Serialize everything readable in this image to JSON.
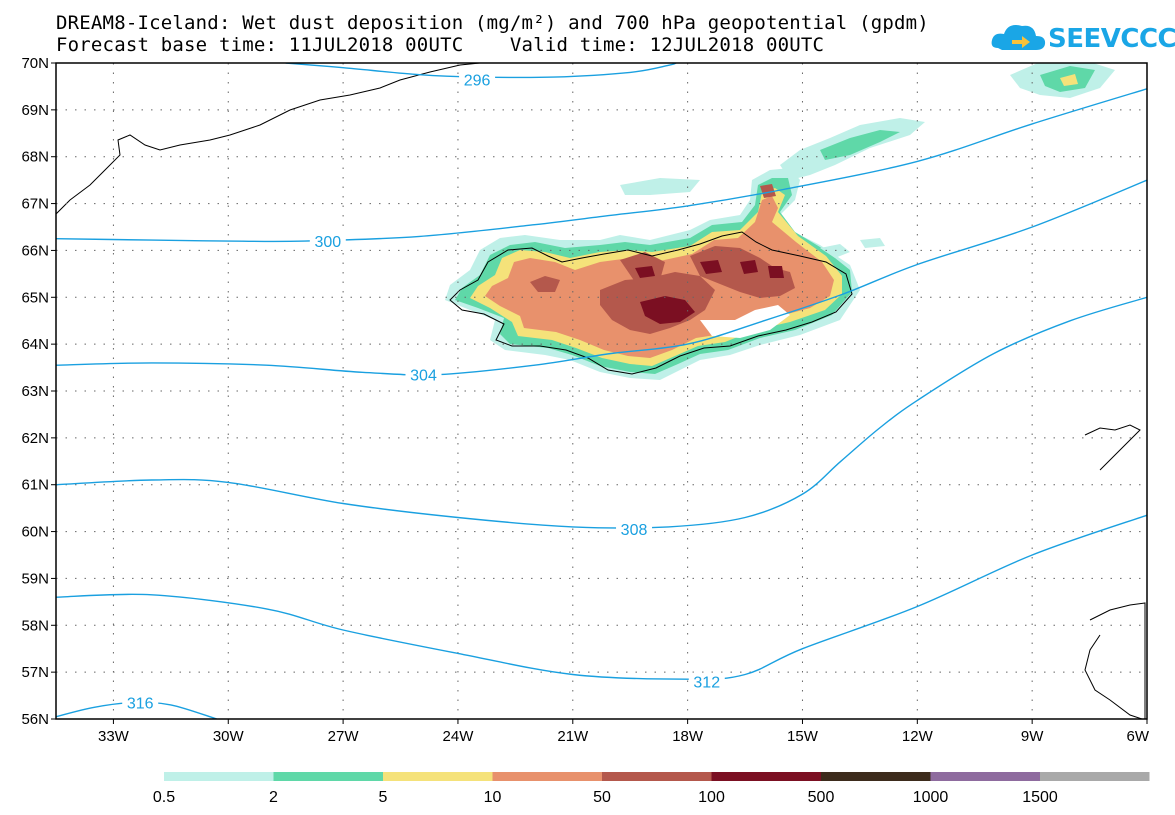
{
  "title": {
    "line1": "DREAM8-Iceland: Wet dust deposition (mg/m²) and 700 hPa geopotential (gpdm)",
    "line2": "Forecast base time: 11JUL2018 00UTC    Valid time: 12JUL2018 00UTC"
  },
  "logo": {
    "text": "SEEVCCC",
    "icon": "cloud-logo-icon"
  },
  "map": {
    "lat_labels": [
      "70N",
      "69N",
      "68N",
      "67N",
      "66N",
      "65N",
      "64N",
      "63N",
      "62N",
      "61N",
      "60N",
      "59N",
      "58N",
      "57N",
      "56N"
    ],
    "lon_labels": [
      "33W",
      "30W",
      "27W",
      "24W",
      "21W",
      "18W",
      "15W",
      "12W",
      "9W",
      "6W"
    ],
    "lon_range": [
      -34.5,
      -6
    ],
    "lat_range": [
      56,
      70
    ],
    "contour_color": "#1aa0e0",
    "contours": [
      {
        "label": "296",
        "points": [
          [
            -28.5,
            70
          ],
          [
            -27,
            69.9
          ],
          [
            -25,
            69.75
          ],
          [
            -23.5,
            69.7
          ],
          [
            -21.5,
            69.7
          ],
          [
            -19.5,
            69.8
          ],
          [
            -18.5,
            69.95
          ],
          [
            -18.3,
            70
          ]
        ],
        "label_at": [
          -23.5,
          69.65
        ]
      },
      {
        "label": "300",
        "points": [
          [
            -34.5,
            66.25
          ],
          [
            -32,
            66.22
          ],
          [
            -30,
            66.2
          ],
          [
            -28,
            66.2
          ],
          [
            -25,
            66.3
          ],
          [
            -22,
            66.55
          ],
          [
            -20,
            66.75
          ],
          [
            -18,
            66.95
          ],
          [
            -15.5,
            67.3
          ],
          [
            -12,
            67.9
          ],
          [
            -9,
            68.7
          ],
          [
            -6,
            69.45
          ]
        ],
        "label_at": [
          -27.4,
          66.2
        ]
      },
      {
        "label": "304",
        "points": [
          [
            -34.5,
            63.55
          ],
          [
            -32,
            63.6
          ],
          [
            -29,
            63.55
          ],
          [
            -26.5,
            63.4
          ],
          [
            -24.5,
            63.35
          ],
          [
            -22,
            63.55
          ],
          [
            -20,
            63.8
          ],
          [
            -18,
            64.0
          ],
          [
            -16,
            64.5
          ],
          [
            -14,
            65.05
          ],
          [
            -12,
            65.7
          ],
          [
            -9,
            66.5
          ],
          [
            -6,
            67.5
          ]
        ],
        "label_at": [
          -24.9,
          63.35
        ]
      },
      {
        "label": "308",
        "points": [
          [
            -34.5,
            61.0
          ],
          [
            -32,
            61.1
          ],
          [
            -30,
            61.05
          ],
          [
            -27,
            60.6
          ],
          [
            -24,
            60.3
          ],
          [
            -21,
            60.1
          ],
          [
            -18.5,
            60.1
          ],
          [
            -16.5,
            60.3
          ],
          [
            -15,
            60.8
          ],
          [
            -14,
            61.5
          ],
          [
            -13,
            62.2
          ],
          [
            -12,
            62.8
          ],
          [
            -10,
            63.8
          ],
          [
            -8,
            64.5
          ],
          [
            -6,
            65.0
          ]
        ],
        "label_at": [
          -19.4,
          60.05
        ]
      },
      {
        "label": "312",
        "points": [
          [
            -34.5,
            58.6
          ],
          [
            -32,
            58.65
          ],
          [
            -29,
            58.35
          ],
          [
            -27,
            57.9
          ],
          [
            -24,
            57.4
          ],
          [
            -21,
            56.95
          ],
          [
            -18,
            56.85
          ],
          [
            -16.5,
            56.95
          ],
          [
            -15,
            57.5
          ],
          [
            -12,
            58.4
          ],
          [
            -9,
            59.5
          ],
          [
            -6,
            60.35
          ]
        ],
        "label_at": [
          -17.5,
          56.8
        ]
      },
      {
        "label": "316",
        "points": [
          [
            -34.5,
            56.05
          ],
          [
            -33.5,
            56.25
          ],
          [
            -32.5,
            56.35
          ],
          [
            -31.5,
            56.3
          ],
          [
            -30.3,
            56.0
          ]
        ],
        "label_at": [
          -32.3,
          56.35
        ]
      }
    ]
  },
  "legend": {
    "bins": [
      {
        "label": "0.5",
        "color": "#bff0e8"
      },
      {
        "label": "2",
        "color": "#5fd8a8"
      },
      {
        "label": "5",
        "color": "#f5e27a"
      },
      {
        "label": "10",
        "color": "#e8916c"
      },
      {
        "label": "50",
        "color": "#b4584c"
      },
      {
        "label": "100",
        "color": "#7b0f22"
      },
      {
        "label": "500",
        "color": "#3d2b1c"
      },
      {
        "label": "1000",
        "color": "#8e6b9e"
      },
      {
        "label": "1500",
        "color": "#a9a9a9"
      }
    ]
  }
}
